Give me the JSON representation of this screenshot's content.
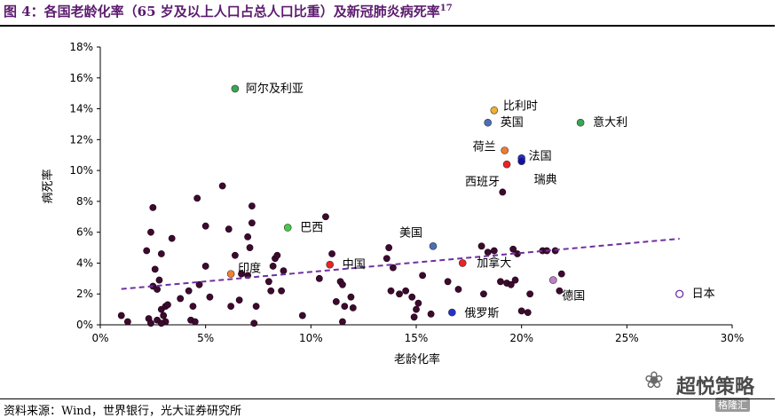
{
  "header": {
    "figure_label": "图 4：各国老龄化率（65 岁及以上人口占总人口比重）及新冠肺炎病死率",
    "footnote_mark": "17"
  },
  "source": "资料来源：Wind，世界银行，光大证券研究所",
  "watermark": {
    "icon": "wechat-icon",
    "text": "超悦策略",
    "badge": "格隆汇"
  },
  "chart_data": {
    "type": "scatter",
    "xlabel": "老龄化率",
    "ylabel": "病死率",
    "xlim": [
      0,
      0.3
    ],
    "ylim": [
      0,
      0.18
    ],
    "x_ticks": [
      "0%",
      "5%",
      "10%",
      "15%",
      "20%",
      "25%",
      "30%"
    ],
    "y_ticks": [
      "0%",
      "2%",
      "4%",
      "6%",
      "8%",
      "10%",
      "12%",
      "14%",
      "16%",
      "18%"
    ],
    "colors": {
      "default_point": "#3d0a2e",
      "trendline": "#7030a0"
    },
    "trendline": {
      "style": "dashed",
      "x": [
        0.01,
        0.275
      ],
      "y": [
        0.0232,
        0.0558
      ]
    },
    "highlighted": [
      {
        "label": "阿尔及利亚",
        "x": 0.064,
        "y": 0.153,
        "color": "#3aa655",
        "filled": true
      },
      {
        "label": "比利时",
        "x": 0.187,
        "y": 0.139,
        "color": "#f0b030",
        "filled": true
      },
      {
        "label": "英国",
        "x": 0.184,
        "y": 0.131,
        "color": "#4a6fb8",
        "filled": true
      },
      {
        "label": "意大利",
        "x": 0.228,
        "y": 0.131,
        "color": "#3aa655",
        "filled": true
      },
      {
        "label": "荷兰",
        "x": 0.192,
        "y": 0.113,
        "color": "#f07a30",
        "filled": true
      },
      {
        "label": "法国",
        "x": 0.2,
        "y": 0.108,
        "color": "#2233cc",
        "filled": true
      },
      {
        "label": "西班牙",
        "x": 0.193,
        "y": 0.104,
        "color": "#ee2222",
        "filled": true
      },
      {
        "label": "瑞典",
        "x": 0.2,
        "y": 0.106,
        "color": "#1111aa",
        "filled": true
      },
      {
        "label": "巴西",
        "x": 0.089,
        "y": 0.063,
        "color": "#44cc44",
        "filled": true
      },
      {
        "label": "美国",
        "x": 0.158,
        "y": 0.051,
        "color": "#4a6fb8",
        "filled": true
      },
      {
        "label": "中国",
        "x": 0.109,
        "y": 0.039,
        "color": "#ee2222",
        "filled": true
      },
      {
        "label": "加拿大",
        "x": 0.172,
        "y": 0.04,
        "color": "#ee2222",
        "filled": true
      },
      {
        "label": "印度",
        "x": 0.062,
        "y": 0.033,
        "color": "#f08030",
        "filled": true
      },
      {
        "label": "德国",
        "x": 0.215,
        "y": 0.029,
        "color": "#c080c8",
        "filled": true
      },
      {
        "label": "俄罗斯",
        "x": 0.167,
        "y": 0.008,
        "color": "#2233cc",
        "filled": true
      },
      {
        "label": "日本",
        "x": 0.275,
        "y": 0.02,
        "color": "#7030a0",
        "filled": false
      }
    ],
    "points": [
      [
        0.01,
        0.006
      ],
      [
        0.013,
        0.002
      ],
      [
        0.022,
        0.048
      ],
      [
        0.024,
        0.06
      ],
      [
        0.025,
        0.076
      ],
      [
        0.025,
        0.025
      ],
      [
        0.026,
        0.036
      ],
      [
        0.027,
        0.023
      ],
      [
        0.028,
        0.029
      ],
      [
        0.027,
        0.003
      ],
      [
        0.029,
        0.01
      ],
      [
        0.03,
        0.006
      ],
      [
        0.031,
        0.012
      ],
      [
        0.031,
        0.002
      ],
      [
        0.032,
        0.013
      ],
      [
        0.034,
        0.056
      ],
      [
        0.029,
        0.046
      ],
      [
        0.023,
        0.004
      ],
      [
        0.024,
        0.001
      ],
      [
        0.029,
        0.001
      ],
      [
        0.038,
        0.017
      ],
      [
        0.042,
        0.022
      ],
      [
        0.043,
        0.003
      ],
      [
        0.044,
        0.012
      ],
      [
        0.045,
        0.002
      ],
      [
        0.046,
        0.082
      ],
      [
        0.047,
        0.026
      ],
      [
        0.05,
        0.064
      ],
      [
        0.05,
        0.038
      ],
      [
        0.052,
        0.018
      ],
      [
        0.058,
        0.09
      ],
      [
        0.061,
        0.062
      ],
      [
        0.062,
        0.012
      ],
      [
        0.064,
        0.045
      ],
      [
        0.066,
        0.016
      ],
      [
        0.067,
        0.033
      ],
      [
        0.07,
        0.057
      ],
      [
        0.071,
        0.05
      ],
      [
        0.072,
        0.077
      ],
      [
        0.072,
        0.066
      ],
      [
        0.073,
        0.001
      ],
      [
        0.074,
        0.012
      ],
      [
        0.07,
        0.032
      ],
      [
        0.08,
        0.028
      ],
      [
        0.081,
        0.022
      ],
      [
        0.082,
        0.038
      ],
      [
        0.083,
        0.043
      ],
      [
        0.084,
        0.045
      ],
      [
        0.086,
        0.022
      ],
      [
        0.087,
        0.035
      ],
      [
        0.096,
        0.006
      ],
      [
        0.104,
        0.03
      ],
      [
        0.107,
        0.07
      ],
      [
        0.11,
        0.046
      ],
      [
        0.112,
        0.015
      ],
      [
        0.114,
        0.028
      ],
      [
        0.115,
        0.026
      ],
      [
        0.116,
        0.012
      ],
      [
        0.115,
        0.002
      ],
      [
        0.119,
        0.018
      ],
      [
        0.12,
        0.011
      ],
      [
        0.136,
        0.043
      ],
      [
        0.137,
        0.05
      ],
      [
        0.138,
        0.022
      ],
      [
        0.139,
        0.037
      ],
      [
        0.142,
        0.02
      ],
      [
        0.145,
        0.022
      ],
      [
        0.148,
        0.018
      ],
      [
        0.149,
        0.005
      ],
      [
        0.15,
        0.01
      ],
      [
        0.151,
        0.014
      ],
      [
        0.153,
        0.032
      ],
      [
        0.157,
        0.007
      ],
      [
        0.165,
        0.028
      ],
      [
        0.17,
        0.023
      ],
      [
        0.181,
        0.051
      ],
      [
        0.182,
        0.02
      ],
      [
        0.184,
        0.047
      ],
      [
        0.187,
        0.048
      ],
      [
        0.19,
        0.028
      ],
      [
        0.191,
        0.086
      ],
      [
        0.193,
        0.027
      ],
      [
        0.195,
        0.026
      ],
      [
        0.196,
        0.049
      ],
      [
        0.197,
        0.029
      ],
      [
        0.198,
        0.046
      ],
      [
        0.2,
        0.009
      ],
      [
        0.203,
        0.008
      ],
      [
        0.204,
        0.02
      ],
      [
        0.21,
        0.048
      ],
      [
        0.212,
        0.048
      ],
      [
        0.216,
        0.048
      ],
      [
        0.218,
        0.022
      ],
      [
        0.219,
        0.033
      ]
    ]
  }
}
